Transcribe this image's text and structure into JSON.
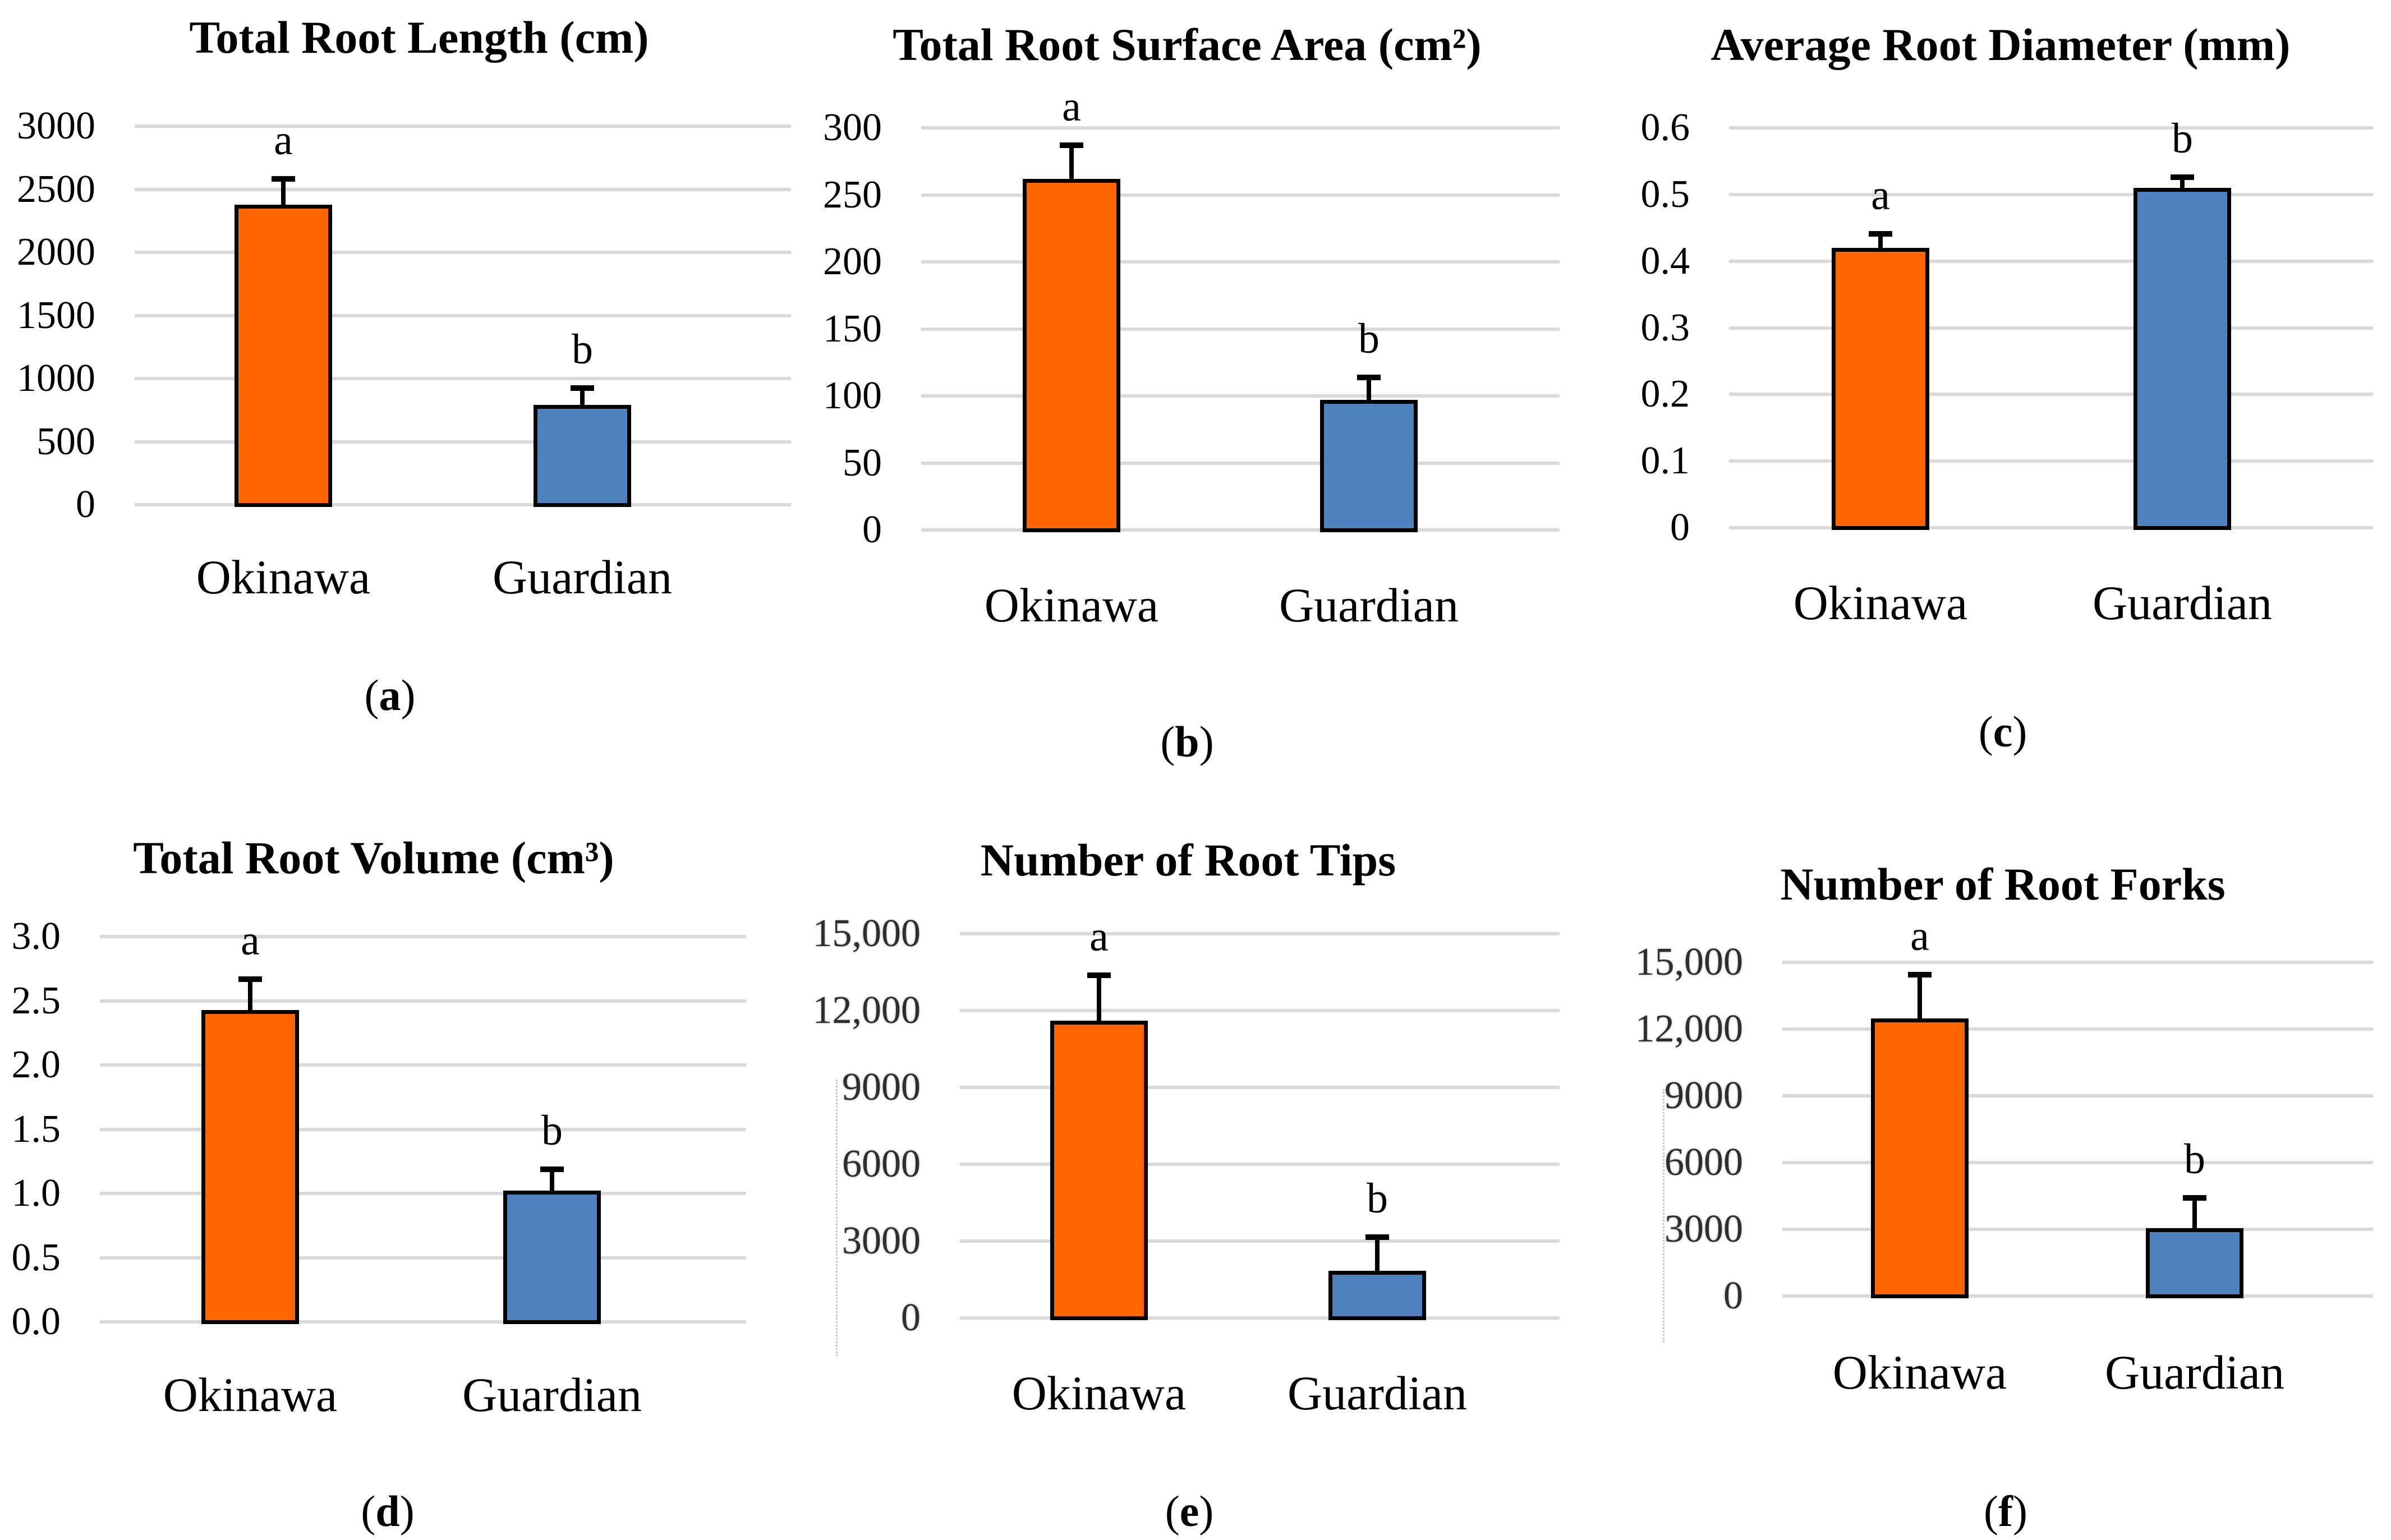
{
  "figure": {
    "description": "Six-panel bar chart figure comparing root traits of Okinawa and Guardian",
    "background": "#ffffff",
    "paren_open": "(",
    "paren_close": ")"
  },
  "colors": {
    "okinawa_bar": "#ff6600",
    "guardian_bar": "#4e81bd",
    "bar_outline": "#000000",
    "error_bar": "#000000",
    "gridline": "#d9d9d9",
    "text": "#000000",
    "faded_axis_text": "#2e2e2e"
  },
  "chart_data": [
    {
      "panel": "a",
      "type": "bar",
      "title": "Total Root Length (cm)",
      "categories": [
        "Okinawa",
        "Guardian"
      ],
      "values": [
        2380,
        790
      ],
      "error_top": [
        2605,
        945
      ],
      "sig_letters": [
        "a",
        "b"
      ],
      "ylim": [
        0,
        3000
      ],
      "yticks": [
        "3000",
        "2500",
        "2000",
        "1500",
        "1000",
        "500",
        "0"
      ],
      "grid": true,
      "legend": "none"
    },
    {
      "panel": "b",
      "type": "bar",
      "title": "Total Root Surface Area (cm²)",
      "categories": [
        "Okinawa",
        "Guardian"
      ],
      "values": [
        262,
        97
      ],
      "error_top": [
        289,
        116
      ],
      "sig_letters": [
        "a",
        "b"
      ],
      "ylim": [
        0,
        300
      ],
      "yticks": [
        "300",
        "250",
        "200",
        "150",
        "100",
        "50",
        "0"
      ],
      "grid": true,
      "legend": "none"
    },
    {
      "panel": "c",
      "type": "bar",
      "title": "Average Root Diameter (mm)",
      "categories": [
        "Okinawa",
        "Guardian"
      ],
      "values": [
        0.42,
        0.51
      ],
      "error_top": [
        0.445,
        0.53
      ],
      "sig_letters": [
        "a",
        "b"
      ],
      "ylim": [
        0,
        0.6
      ],
      "yticks": [
        "0.6",
        "0.5",
        "0.4",
        "0.3",
        "0.2",
        "0.1",
        "0"
      ],
      "grid": true,
      "legend": "none"
    },
    {
      "panel": "d",
      "type": "bar",
      "title": "Total Root Volume (cm³)",
      "categories": [
        "Okinawa",
        "Guardian"
      ],
      "values": [
        2.43,
        1.02
      ],
      "error_top": [
        2.69,
        1.21
      ],
      "sig_letters": [
        "a",
        "b"
      ],
      "ylim": [
        0,
        3.0
      ],
      "yticks": [
        "3.0",
        "2.5",
        "2.0",
        "1.5",
        "1.0",
        "0.5",
        "0.0"
      ],
      "grid": true,
      "legend": "none"
    },
    {
      "panel": "e",
      "type": "bar",
      "title": "Number of Root Tips",
      "categories": [
        "Okinawa",
        "Guardian"
      ],
      "values": [
        11600,
        1850
      ],
      "error_top": [
        13500,
        3260
      ],
      "sig_letters": [
        "a",
        "b"
      ],
      "ylim": [
        0,
        15000
      ],
      "yticks": [
        "15,000",
        "12,000",
        "9000",
        "6000",
        "3000",
        "0"
      ],
      "grid": true,
      "legend": "none"
    },
    {
      "panel": "f",
      "type": "bar",
      "title": "Number of Root Forks",
      "categories": [
        "Okinawa",
        "Guardian"
      ],
      "values": [
        12480,
        3060
      ],
      "error_top": [
        14570,
        4550
      ],
      "sig_letters": [
        "a",
        "b"
      ],
      "ylim": [
        0,
        15000
      ],
      "yticks": [
        "15,000",
        "12,000",
        "9000",
        "6000",
        "3000",
        "0"
      ],
      "grid": true,
      "legend": "none"
    }
  ]
}
